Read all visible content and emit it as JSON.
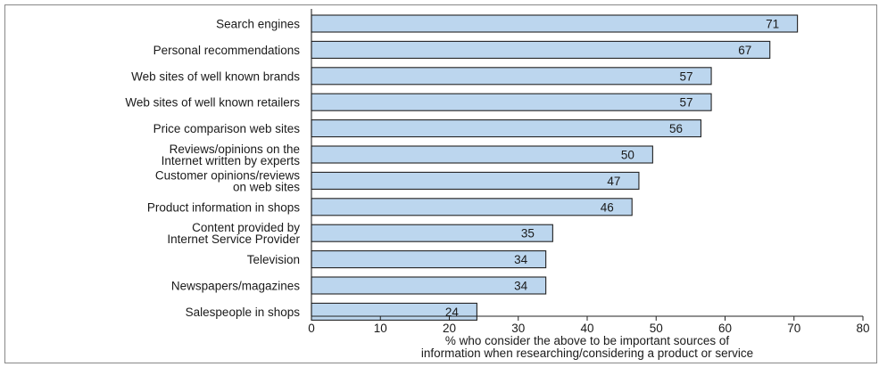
{
  "chart_data": {
    "type": "bar",
    "orientation": "horizontal",
    "categories": [
      "Search engines",
      "Personal recommendations",
      "Web sites of well known brands",
      "Web sites of well known retailers",
      "Price comparison web sites",
      "Reviews/opinions on the\nInternet written by experts",
      "Customer opinions/reviews\non web sites",
      "Product information in shops",
      "Content provided by\nInternet Service Provider",
      "Television",
      "Newspapers/magazines",
      "Salespeople in shops"
    ],
    "values": [
      71,
      67,
      57,
      57,
      56,
      50,
      47,
      46,
      35,
      34,
      34,
      24
    ],
    "bar_ends": [
      70.5,
      66.5,
      58,
      58,
      56.5,
      49.5,
      47.5,
      46.5,
      35,
      34,
      34,
      24
    ],
    "xlim": [
      0,
      80
    ],
    "xticks": [
      0,
      10,
      20,
      30,
      40,
      50,
      60,
      70,
      80
    ],
    "xlabel": "% who consider the above to be important sources of\ninformation when researching/considering a product or service",
    "title": "",
    "grid": false,
    "legend": "none",
    "colors": {
      "bar_fill": "#bcd6ee",
      "bar_stroke": "#222222",
      "axis": "#222222",
      "frame": "#888888"
    }
  }
}
